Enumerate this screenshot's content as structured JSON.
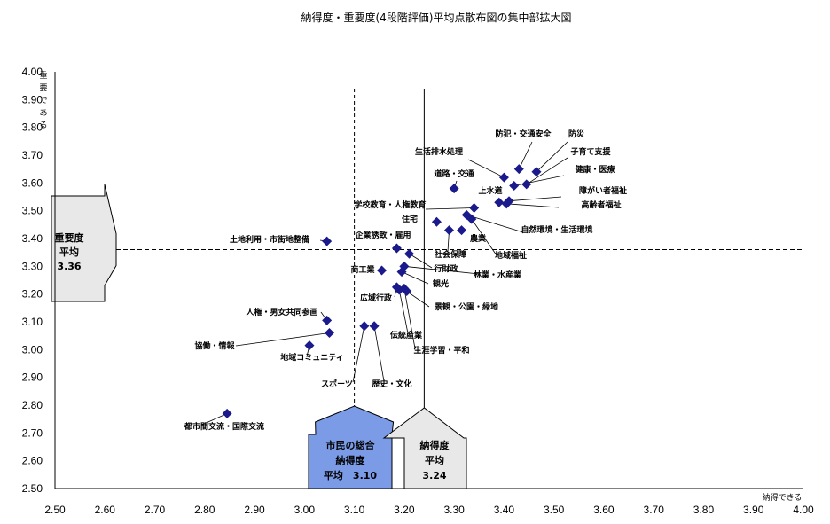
{
  "chart_data": {
    "type": "scatter",
    "title": "納得度・重要度(4段階評価)平均点散布図の集中部拡大図",
    "xlabel": "納得できる",
    "ylabel_chars": [
      "重",
      "要",
      "で",
      "あ",
      "る"
    ],
    "xlim": [
      2.5,
      4.0
    ],
    "ylim": [
      2.5,
      4.0
    ],
    "x_ticks": [
      "2.50",
      "2.60",
      "2.70",
      "2.80",
      "2.90",
      "3.00",
      "3.10",
      "3.20",
      "3.30",
      "3.40",
      "3.50",
      "3.60",
      "3.70",
      "3.80",
      "3.90",
      "4.00"
    ],
    "y_ticks": [
      "2.50",
      "2.60",
      "2.70",
      "2.80",
      "2.90",
      "3.00",
      "3.10",
      "3.20",
      "3.30",
      "3.40",
      "3.50",
      "3.60",
      "3.70",
      "3.80",
      "3.90",
      "4.00"
    ],
    "grid": false,
    "marker_color": "#1a1a8c",
    "points": [
      {
        "label": "防犯・交通安全",
        "x": 3.43,
        "y": 3.65
      },
      {
        "label": "防災",
        "x": 3.465,
        "y": 3.64
      },
      {
        "label": "子育て支援",
        "x": 3.445,
        "y": 3.595
      },
      {
        "label": "健康・医療",
        "x": 3.42,
        "y": 3.59
      },
      {
        "label": "生活排水処理",
        "x": 3.4,
        "y": 3.62
      },
      {
        "label": "道路・交通",
        "x": 3.3,
        "y": 3.58
      },
      {
        "label": "上水道",
        "x": 3.39,
        "y": 3.53
      },
      {
        "label": "障がい者福祉",
        "x": 3.41,
        "y": 3.535
      },
      {
        "label": "高齢者福祉",
        "x": 3.405,
        "y": 3.525
      },
      {
        "label": "学校教育・人権教育",
        "x": 3.34,
        "y": 3.51
      },
      {
        "label": "自然環境・生活環境",
        "x": 3.325,
        "y": 3.485
      },
      {
        "label": "地域福祉",
        "x": 3.335,
        "y": 3.47
      },
      {
        "label": "住宅",
        "x": 3.265,
        "y": 3.46
      },
      {
        "label": "社会保障",
        "x": 3.29,
        "y": 3.43
      },
      {
        "label": "農業",
        "x": 3.315,
        "y": 3.43
      },
      {
        "label": "企業誘致・雇用",
        "x": 3.185,
        "y": 3.365
      },
      {
        "label": "行財政",
        "x": 3.21,
        "y": 3.345
      },
      {
        "label": "林業・水産業",
        "x": 3.2,
        "y": 3.3
      },
      {
        "label": "商工業",
        "x": 3.155,
        "y": 3.285
      },
      {
        "label": "観光",
        "x": 3.195,
        "y": 3.28
      },
      {
        "label": "広域行政",
        "x": 3.185,
        "y": 3.225
      },
      {
        "label": "景観・公園・緑地",
        "x": 3.205,
        "y": 3.21
      },
      {
        "label": "伝統産業",
        "x": 3.19,
        "y": 3.215
      },
      {
        "label": "生涯学習・平和",
        "x": 3.2,
        "y": 3.22
      },
      {
        "label": "土地利用・市街地整備",
        "x": 3.045,
        "y": 3.39
      },
      {
        "label": "人権・男女共同参画",
        "x": 3.045,
        "y": 3.105
      },
      {
        "label": "協働・情報",
        "x": 3.05,
        "y": 3.06
      },
      {
        "label": "地域コミュニティ",
        "x": 3.01,
        "y": 3.015
      },
      {
        "label": "スポーツ",
        "x": 3.12,
        "y": 3.085
      },
      {
        "label": "歴史・文化",
        "x": 3.14,
        "y": 3.085
      },
      {
        "label": "都市間交流・国際交流",
        "x": 2.845,
        "y": 2.77
      }
    ],
    "ref_lines": {
      "importance_avg": 3.36,
      "citizen_x": 3.1,
      "satisfaction_avg_x": 3.24
    },
    "callouts": {
      "importance": [
        "重要度",
        "平均",
        "3.36"
      ],
      "citizen": [
        "市民の総合",
        "納得度",
        "平均　3.10"
      ],
      "satisfaction": [
        "納得度",
        "平均",
        "3.24"
      ]
    },
    "colors": {
      "citizen_fill": "#7b9be6",
      "callout_fill": "#e8e8e8"
    }
  }
}
